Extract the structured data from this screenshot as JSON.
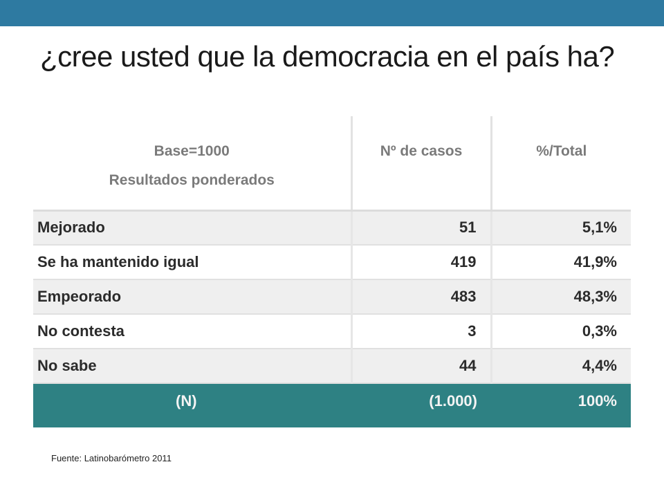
{
  "header": {
    "color": "#2e7aa1"
  },
  "title": "¿cree usted que la democracia en el país ha?",
  "table": {
    "header": {
      "col1_line1": "Base=1000",
      "col1_line2": "Resultados ponderados",
      "col2": "Nº de casos",
      "col3": "%/Total"
    },
    "rows": [
      {
        "label": "Mejorado",
        "cases": "51",
        "pct": "5,1%"
      },
      {
        "label": "Se ha mantenido igual",
        "cases": "419",
        "pct": "41,9%"
      },
      {
        "label": "Empeorado",
        "cases": "483",
        "pct": "48,3%"
      },
      {
        "label": "No contesta",
        "cases": "3",
        "pct": "0,3%"
      },
      {
        "label": "No sabe",
        "cases": "44",
        "pct": "4,4%"
      }
    ],
    "total": {
      "label": "(N)",
      "cases": "(1.000)",
      "pct": "100%"
    },
    "total_row_color": "#2e8183"
  },
  "source": "Fuente: Latinobarómetro 2011"
}
